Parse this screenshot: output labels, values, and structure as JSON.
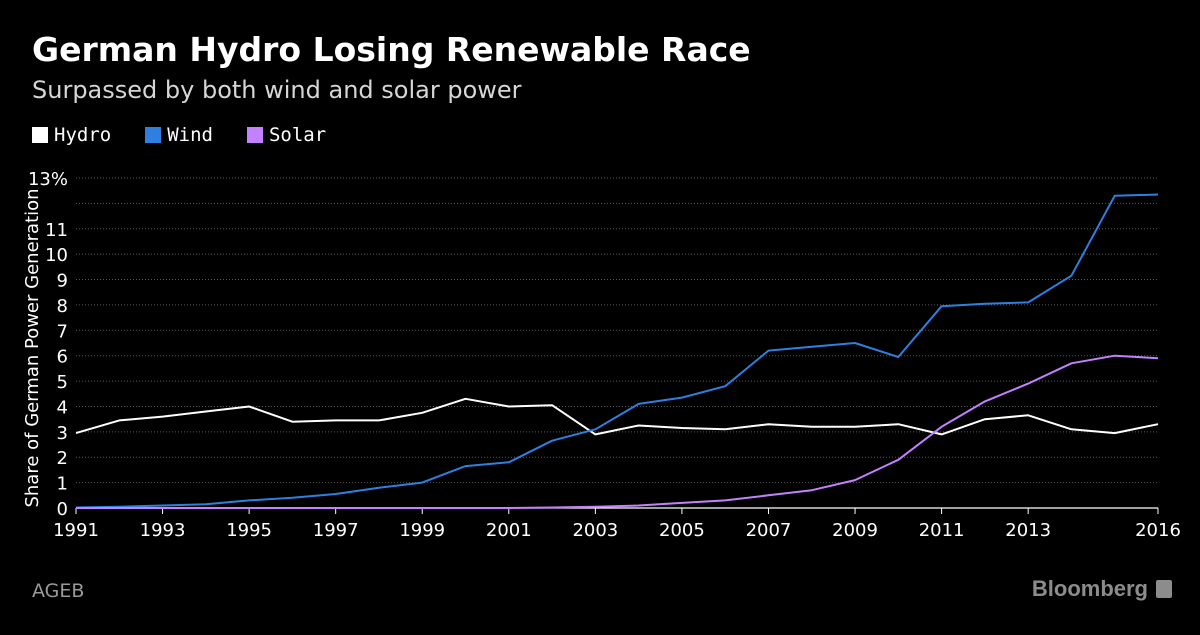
{
  "header": {
    "title": "German Hydro Losing Renewable Race",
    "subtitle": "Surpassed by both wind and solar power"
  },
  "footer": {
    "source": "AGEB",
    "brand": "Bloomberg"
  },
  "colors": {
    "background": "#000000",
    "hydro": "#ffffff",
    "wind": "#2f7fe0",
    "solar": "#c381ff",
    "grid": "#5a5a5a"
  },
  "chart_data": {
    "type": "line",
    "title": "German Hydro Losing Renewable Race",
    "subtitle": "Surpassed by both wind and solar power",
    "xlabel": "",
    "ylabel": "Share of German Power Generation",
    "ylim": [
      0,
      13
    ],
    "xlim": [
      1991,
      2016
    ],
    "grid": true,
    "legend_position": "top-left",
    "y_ticks": [
      0,
      1,
      2,
      3,
      4,
      5,
      6,
      7,
      8,
      9,
      10,
      11,
      13
    ],
    "y_tick_labels": [
      "0",
      "1",
      "2",
      "3",
      "4",
      "5",
      "6",
      "7",
      "8",
      "9",
      "10",
      "11",
      "13%"
    ],
    "x_ticks": [
      1991,
      1993,
      1995,
      1997,
      1999,
      2001,
      2003,
      2005,
      2007,
      2009,
      2011,
      2013,
      2016
    ],
    "x_tick_labels": [
      "1991",
      "1993",
      "1995",
      "1997",
      "1999",
      "2001",
      "2003",
      "2005",
      "2007",
      "2009",
      "2011",
      "2013",
      "2016"
    ],
    "x": [
      1991,
      1992,
      1993,
      1994,
      1995,
      1996,
      1997,
      1998,
      1999,
      2000,
      2001,
      2002,
      2003,
      2004,
      2005,
      2006,
      2007,
      2008,
      2009,
      2010,
      2011,
      2012,
      2013,
      2014,
      2015,
      2016
    ],
    "series": [
      {
        "name": "Hydro",
        "color": "#ffffff",
        "values": [
          2.95,
          3.45,
          3.6,
          3.8,
          4.0,
          3.4,
          3.45,
          3.45,
          3.75,
          4.3,
          4.0,
          4.05,
          2.9,
          3.25,
          3.15,
          3.1,
          3.3,
          3.2,
          3.2,
          3.3,
          2.9,
          3.5,
          3.65,
          3.1,
          2.95,
          3.3
        ]
      },
      {
        "name": "Wind",
        "color": "#2f7fe0",
        "values": [
          0.02,
          0.05,
          0.1,
          0.15,
          0.3,
          0.4,
          0.55,
          0.8,
          1.0,
          1.65,
          1.8,
          2.65,
          3.1,
          4.1,
          4.35,
          4.8,
          6.2,
          6.35,
          6.5,
          5.95,
          7.95,
          8.05,
          8.1,
          9.15,
          12.3,
          12.35
        ]
      },
      {
        "name": "Solar",
        "color": "#c381ff",
        "values": [
          0,
          0,
          0,
          0,
          0,
          0,
          0,
          0,
          0,
          0,
          0,
          0.02,
          0.05,
          0.1,
          0.2,
          0.3,
          0.5,
          0.7,
          1.1,
          1.9,
          3.2,
          4.2,
          4.9,
          5.7,
          6.0,
          5.9
        ]
      }
    ]
  }
}
